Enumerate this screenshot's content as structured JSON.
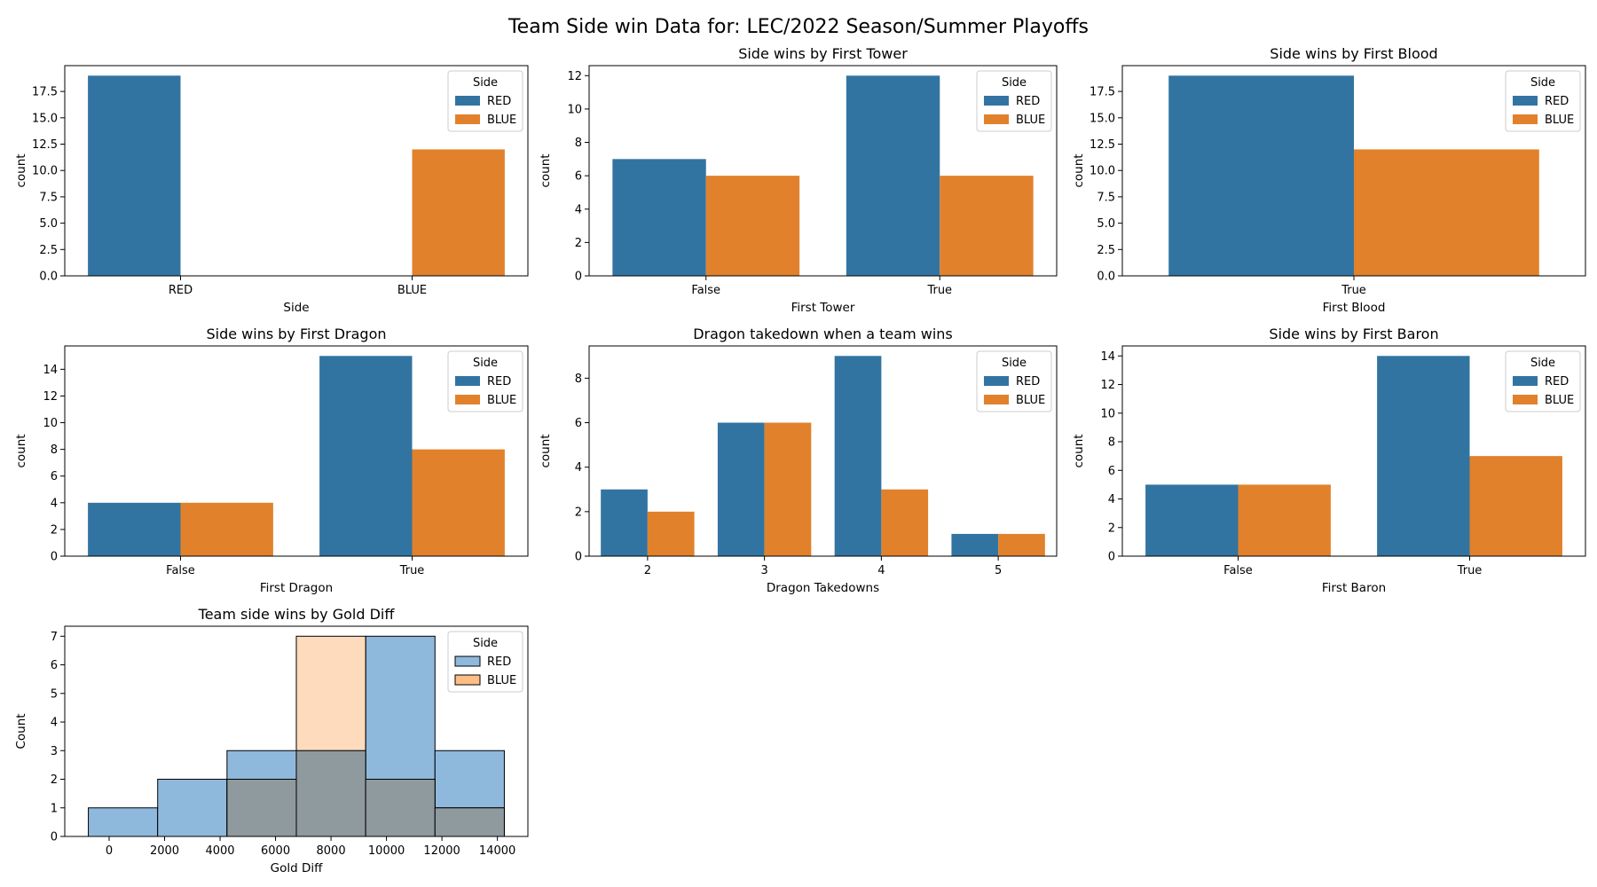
{
  "figure": {
    "suptitle": "Team Side win Data for: LEC/2022 Season/Summer Playoffs"
  },
  "colors": {
    "RED": "#3274a1",
    "BLUE": "#e1812c",
    "hist_RED": "#8fb9dc",
    "hist_BLUE": "#fdbe86",
    "hist_overlap": "#8e9a9e"
  },
  "chart_data": [
    {
      "id": "side",
      "type": "bar",
      "title": "",
      "xlabel": "Side",
      "ylabel": "count",
      "categories": [
        "RED",
        "BLUE"
      ],
      "series": [
        {
          "name": "RED",
          "values": [
            19,
            null
          ]
        },
        {
          "name": "BLUE",
          "values": [
            null,
            12
          ]
        }
      ],
      "ylim": [
        0,
        19.95
      ],
      "yticks": [
        0,
        2.5,
        5,
        7.5,
        10,
        12.5,
        15,
        17.5
      ],
      "ytick_labels": [
        "0.0",
        "2.5",
        "5.0",
        "7.5",
        "10.0",
        "12.5",
        "15.0",
        "17.5"
      ],
      "legend": {
        "title": "Side",
        "entries": [
          "RED",
          "BLUE"
        ],
        "placement": "top-right"
      }
    },
    {
      "id": "first-tower",
      "type": "bar",
      "title": "Side wins by First Tower",
      "xlabel": "First Tower",
      "ylabel": "count",
      "categories": [
        "False",
        "True"
      ],
      "series": [
        {
          "name": "RED",
          "values": [
            7,
            12
          ]
        },
        {
          "name": "BLUE",
          "values": [
            6,
            6
          ]
        }
      ],
      "ylim": [
        0,
        12.6
      ],
      "yticks": [
        0,
        2,
        4,
        6,
        8,
        10,
        12
      ],
      "ytick_labels": [
        "0",
        "2",
        "4",
        "6",
        "8",
        "10",
        "12"
      ],
      "legend": {
        "title": "Side",
        "entries": [
          "RED",
          "BLUE"
        ],
        "placement": "top-right"
      }
    },
    {
      "id": "first-blood",
      "type": "bar",
      "title": "Side wins by First Blood",
      "xlabel": "First Blood",
      "ylabel": "count",
      "categories": [
        "True"
      ],
      "series": [
        {
          "name": "RED",
          "values": [
            19
          ]
        },
        {
          "name": "BLUE",
          "values": [
            12
          ]
        }
      ],
      "ylim": [
        0,
        19.95
      ],
      "yticks": [
        0,
        2.5,
        5,
        7.5,
        10,
        12.5,
        15,
        17.5
      ],
      "ytick_labels": [
        "0.0",
        "2.5",
        "5.0",
        "7.5",
        "10.0",
        "12.5",
        "15.0",
        "17.5"
      ],
      "legend": {
        "title": "Side",
        "entries": [
          "RED",
          "BLUE"
        ],
        "placement": "top-right"
      }
    },
    {
      "id": "first-dragon",
      "type": "bar",
      "title": "Side wins by First Dragon",
      "xlabel": "First Dragon",
      "ylabel": "count",
      "categories": [
        "False",
        "True"
      ],
      "series": [
        {
          "name": "RED",
          "values": [
            4,
            15
          ]
        },
        {
          "name": "BLUE",
          "values": [
            4,
            8
          ]
        }
      ],
      "ylim": [
        0,
        15.75
      ],
      "yticks": [
        0,
        2,
        4,
        6,
        8,
        10,
        12,
        14
      ],
      "ytick_labels": [
        "0",
        "2",
        "4",
        "6",
        "8",
        "10",
        "12",
        "14"
      ],
      "legend": {
        "title": "Side",
        "entries": [
          "RED",
          "BLUE"
        ],
        "placement": "top-right"
      }
    },
    {
      "id": "dragon-takedowns",
      "type": "bar",
      "title": "Dragon takedown when a team wins",
      "xlabel": "Dragon Takedowns",
      "ylabel": "count",
      "categories": [
        "2",
        "3",
        "4",
        "5"
      ],
      "series": [
        {
          "name": "RED",
          "values": [
            3,
            6,
            9,
            1
          ]
        },
        {
          "name": "BLUE",
          "values": [
            2,
            6,
            3,
            1
          ]
        }
      ],
      "ylim": [
        0,
        9.45
      ],
      "yticks": [
        0,
        2,
        4,
        6,
        8
      ],
      "ytick_labels": [
        "0",
        "2",
        "4",
        "6",
        "8"
      ],
      "legend": {
        "title": "Side",
        "entries": [
          "RED",
          "BLUE"
        ],
        "placement": "top-right"
      }
    },
    {
      "id": "first-baron",
      "type": "bar",
      "title": "Side wins by First Baron",
      "xlabel": "First Baron",
      "ylabel": "count",
      "categories": [
        "False",
        "True"
      ],
      "series": [
        {
          "name": "RED",
          "values": [
            5,
            14
          ]
        },
        {
          "name": "BLUE",
          "values": [
            5,
            7
          ]
        }
      ],
      "ylim": [
        0,
        14.7
      ],
      "yticks": [
        0,
        2,
        4,
        6,
        8,
        10,
        12,
        14
      ],
      "ytick_labels": [
        "0",
        "2",
        "4",
        "6",
        "8",
        "10",
        "12",
        "14"
      ],
      "legend": {
        "title": "Side",
        "entries": [
          "RED",
          "BLUE"
        ],
        "placement": "top-right"
      }
    },
    {
      "id": "gold-diff",
      "type": "histogram",
      "title": "Team side wins by Gold Diff",
      "xlabel": "Gold Diff",
      "ylabel": "Count",
      "bin_edges": [
        -750,
        1750,
        4250,
        6750,
        9250,
        11750,
        14250
      ],
      "series": [
        {
          "name": "RED",
          "counts": [
            1,
            2,
            3,
            3,
            7,
            3
          ]
        },
        {
          "name": "BLUE",
          "counts": [
            0,
            0,
            2,
            7,
            2,
            1
          ]
        }
      ],
      "xlim": [
        -1600,
        15100
      ],
      "ylim": [
        0,
        7.35
      ],
      "xticks": [
        0,
        2000,
        4000,
        6000,
        8000,
        10000,
        12000,
        14000
      ],
      "xtick_labels": [
        "0",
        "2000",
        "4000",
        "6000",
        "8000",
        "10000",
        "12000",
        "14000"
      ],
      "yticks": [
        0,
        1,
        2,
        3,
        4,
        5,
        6,
        7
      ],
      "ytick_labels": [
        "0",
        "1",
        "2",
        "3",
        "4",
        "5",
        "6",
        "7"
      ],
      "legend": {
        "title": "Side",
        "entries": [
          "RED",
          "BLUE"
        ],
        "placement": "top-right"
      }
    }
  ]
}
